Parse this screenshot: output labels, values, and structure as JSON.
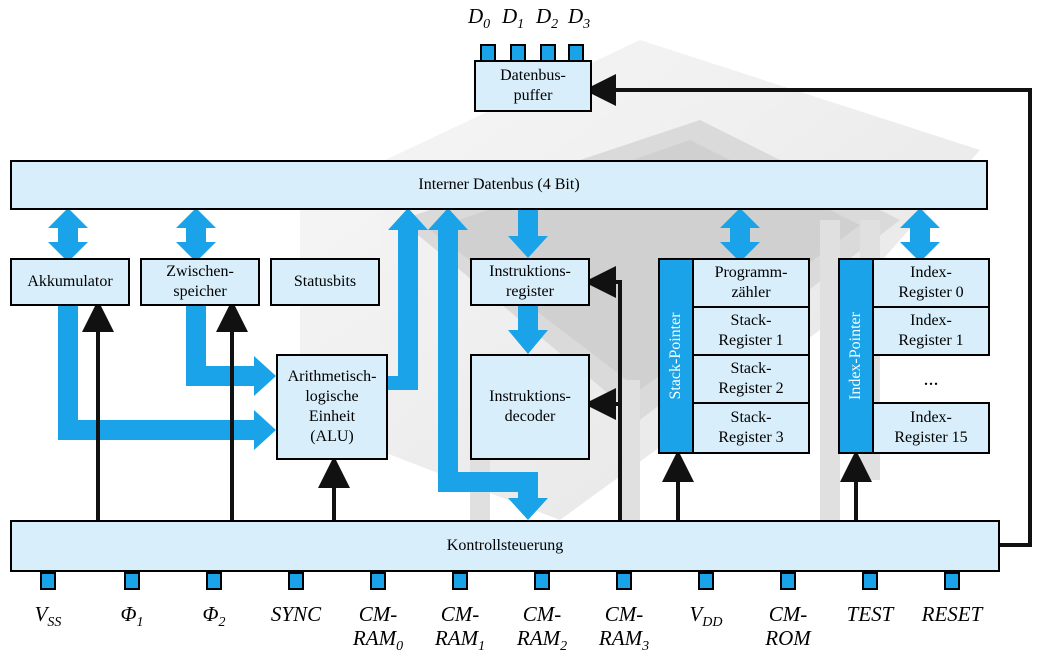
{
  "diagram": {
    "datenbus_puffer": "Datenbus-\npuffer",
    "data_pins": [
      {
        "base": "D",
        "sub": "0"
      },
      {
        "base": "D",
        "sub": "1"
      },
      {
        "base": "D",
        "sub": "2"
      },
      {
        "base": "D",
        "sub": "3"
      }
    ],
    "interner_datenbus": "Interner Datenbus (4 Bit)",
    "akkumulator": "Akkumulator",
    "zwischenspeicher": "Zwischen-\nspeicher",
    "statusbits": "Statusbits",
    "alu": "Arithmetisch-\nlogische\nEinheit\n(ALU)",
    "instruktionsregister": "Instruktions-\nregister",
    "instruktionsdecoder": "Instruktions-\ndecoder",
    "stack_pointer": "Stack-Pointer",
    "programmzaehler": "Programm-\nzähler",
    "stack_registers": [
      "Stack-\nRegister 1",
      "Stack-\nRegister 2",
      "Stack-\nRegister 3"
    ],
    "index_pointer": "Index-Pointer",
    "index_registers": [
      "Index-\nRegister 0",
      "Index-\nRegister 1",
      "...",
      "Index-\nRegister 15"
    ],
    "kontrollsteuerung": "Kontrollsteuerung",
    "pins": [
      {
        "line1": "V",
        "sub1": "SS",
        "line2": "",
        "sub2": ""
      },
      {
        "line1": "Φ",
        "sub1": "1",
        "line2": "",
        "sub2": ""
      },
      {
        "line1": "Φ",
        "sub1": "2",
        "line2": "",
        "sub2": ""
      },
      {
        "line1": "SYNC",
        "sub1": "",
        "line2": "",
        "sub2": ""
      },
      {
        "line1": "CM-",
        "sub1": "",
        "line2": "RAM",
        "sub2": "0"
      },
      {
        "line1": "CM-",
        "sub1": "",
        "line2": "RAM",
        "sub2": "1"
      },
      {
        "line1": "CM-",
        "sub1": "",
        "line2": "RAM",
        "sub2": "2"
      },
      {
        "line1": "CM-",
        "sub1": "",
        "line2": "RAM",
        "sub2": "3"
      },
      {
        "line1": "V",
        "sub1": "DD",
        "line2": "",
        "sub2": ""
      },
      {
        "line1": "CM-",
        "sub1": "",
        "line2": "ROM",
        "sub2": ""
      },
      {
        "line1": "TEST",
        "sub1": "",
        "line2": "",
        "sub2": ""
      },
      {
        "line1": "RESET",
        "sub1": "",
        "line2": "",
        "sub2": ""
      }
    ]
  },
  "colors": {
    "box_fill": "#d8eefa",
    "bus_blue": "#1aa3e8",
    "control_black": "#111111"
  },
  "background_image": "chip-photo"
}
